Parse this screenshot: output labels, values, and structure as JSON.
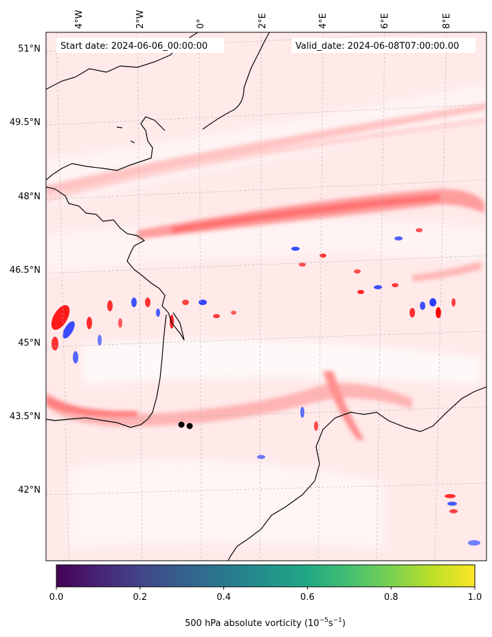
{
  "map": {
    "start_date_label": "Start date: 2024-06-06_00:00:00",
    "valid_date_label": "Valid_date: 2024-06-08T07:00:00.00",
    "lon_ticks": [
      "4°W",
      "2°W",
      "0°",
      "2°E",
      "4°E",
      "6°E",
      "8°E"
    ],
    "lat_ticks": [
      "51°N",
      "49.5°N",
      "48°N",
      "46.5°N",
      "45°N",
      "43.5°N",
      "42°N"
    ],
    "colors": {
      "field_background": "#ffe9e9",
      "field_strong_positive": "#ff0000",
      "field_weak_positive": "#ffc9c9",
      "field_negative": "#2a3cff",
      "coastline": "#000000",
      "gridline": "#b0b0b0"
    },
    "markers": [
      {
        "name": "point-1"
      },
      {
        "name": "point-2"
      }
    ]
  },
  "colorbar": {
    "title_prefix": "500 hPa absolute vorticity (10",
    "title_exp1": "−5",
    "title_mid": "s",
    "title_exp2": "−1",
    "title_suffix": ")",
    "tick_labels": [
      "0.0",
      "0.2",
      "0.4",
      "0.6",
      "0.8",
      "1.0"
    ],
    "colormap": "viridis",
    "range": [
      0.0,
      1.0
    ]
  }
}
